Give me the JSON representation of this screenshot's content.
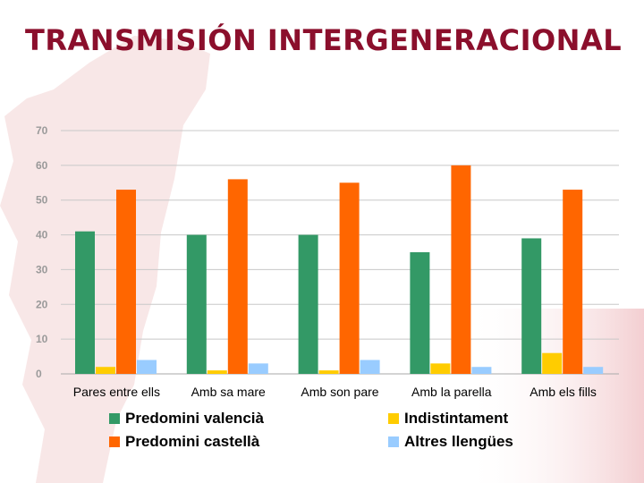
{
  "title": "TRANSMISIÓN INTERGENERACIONAL",
  "chart_data": {
    "type": "bar",
    "categories": [
      "Pares entre ells",
      "Amb sa mare",
      "Amb son pare",
      "Amb la parella",
      "Amb els fills"
    ],
    "series": [
      {
        "name": "Predomini valencià",
        "color": "#339966",
        "values": [
          41,
          40,
          40,
          35,
          39
        ]
      },
      {
        "name": "Indistintament",
        "color": "#ffcc00",
        "values": [
          2,
          1,
          1,
          3,
          6
        ]
      },
      {
        "name": "Predomini castellà",
        "color": "#ff6600",
        "values": [
          53,
          56,
          55,
          60,
          53
        ]
      },
      {
        "name": "Altres llengües",
        "color": "#99ccff",
        "values": [
          4,
          3,
          4,
          2,
          2
        ]
      }
    ],
    "ylim": [
      0,
      70
    ],
    "yticks": [
      "0",
      "10",
      "20",
      "30",
      "40",
      "50",
      "60",
      "70"
    ],
    "grid": true,
    "legend_position": "bottom"
  },
  "legend": [
    {
      "label": "Predomini valencià",
      "color": "#339966"
    },
    {
      "label": "Indistintament",
      "color": "#ffcc00"
    },
    {
      "label": "Predomini castellà",
      "color": "#ff6600"
    },
    {
      "label": "Altres llengües",
      "color": "#99ccff"
    }
  ]
}
